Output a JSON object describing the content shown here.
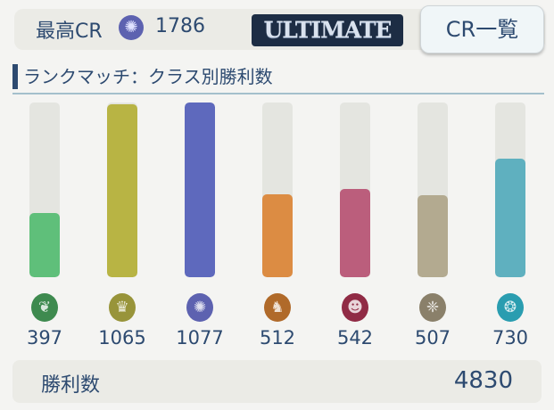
{
  "header": {
    "max_cr_label": "最高CR",
    "max_cr_value": "1786",
    "rank_logo": "ULTIMATE",
    "cr_list_button": "CR一覧",
    "class_icon": "haven-icon"
  },
  "section_title": "ランクマッチ：クラス別勝利数",
  "chart_data": {
    "type": "bar",
    "categories": [
      "forest",
      "sword",
      "haven",
      "dragon",
      "abyss",
      "portal-wing",
      "portal"
    ],
    "values": [
      397,
      1065,
      1077,
      512,
      542,
      507,
      730
    ],
    "labels": [
      "397",
      "1065",
      "1077",
      "512",
      "542",
      "507",
      "730"
    ],
    "colors": [
      "#5fbf7a",
      "#b8b444",
      "#5e69bd",
      "#dc8c43",
      "#bb5e7c",
      "#b3aa90",
      "#5fb0bf"
    ],
    "icon_colors": [
      "#3e8a4f",
      "#98943a",
      "#5d62b0",
      "#b06a2a",
      "#902b45",
      "#8a806a",
      "#2a9db0"
    ],
    "icons": [
      "leaf-icon",
      "crown-icon",
      "star-icon",
      "dragon-icon",
      "demon-icon",
      "wings-icon",
      "gear-icon"
    ],
    "glyphs": [
      "❦",
      "♛",
      "✺",
      "♞",
      "☻",
      "❈",
      "❂"
    ],
    "ylim": [
      0,
      1077
    ]
  },
  "total": {
    "label": "勝利数",
    "value": "4830"
  }
}
